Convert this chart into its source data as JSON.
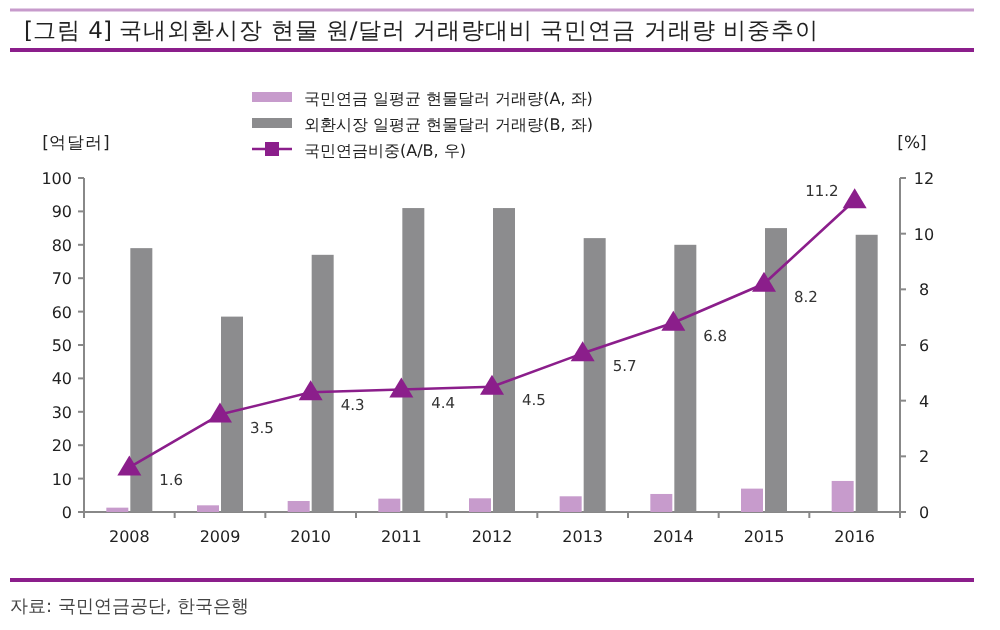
{
  "chart_data": {
    "type": "bar",
    "title": "[그림 4] 국내외환시장 현물 원/달러 거래량대비 국민연금 거래량 비중추이",
    "categories": [
      "2008",
      "2009",
      "2010",
      "2011",
      "2012",
      "2013",
      "2014",
      "2015",
      "2016"
    ],
    "series": [
      {
        "name": "국민연금 일평균 현물달러 거래량(A, 좌)",
        "color": "#c79bcc",
        "values": [
          1.3,
          2.0,
          3.3,
          4.0,
          4.1,
          4.7,
          5.4,
          7.0,
          9.3
        ]
      },
      {
        "name": "외환시장 일평균 현물달러 거래량(B, 좌)",
        "color": "#8c8c8e",
        "values": [
          79,
          58.5,
          77,
          91,
          91,
          82,
          80,
          85,
          83
        ]
      },
      {
        "name": "국민연금비중(A/B, 우)",
        "type": "line",
        "axis": "y2",
        "color": "#8b1e8b",
        "marker": "triangle",
        "values": [
          1.6,
          3.5,
          4.3,
          4.4,
          4.5,
          5.7,
          6.8,
          8.2,
          11.2
        ],
        "value_labels": [
          "1.6",
          "3.5",
          "4.3",
          "4.4",
          "4.5",
          "5.7",
          "6.8",
          "8.2",
          "11.2"
        ]
      }
    ],
    "ylabel": "[억달러]",
    "y2label": "[%]",
    "ylim": [
      0,
      100
    ],
    "yticks": [
      0,
      10,
      20,
      30,
      40,
      50,
      60,
      70,
      80,
      90,
      100
    ],
    "y2lim": [
      0,
      12
    ],
    "y2ticks": [
      0,
      2,
      4,
      6,
      8,
      10,
      12
    ],
    "legend": "top",
    "grid": false,
    "annotations": [
      "자료: 국민연금공단, 한국은행"
    ]
  }
}
